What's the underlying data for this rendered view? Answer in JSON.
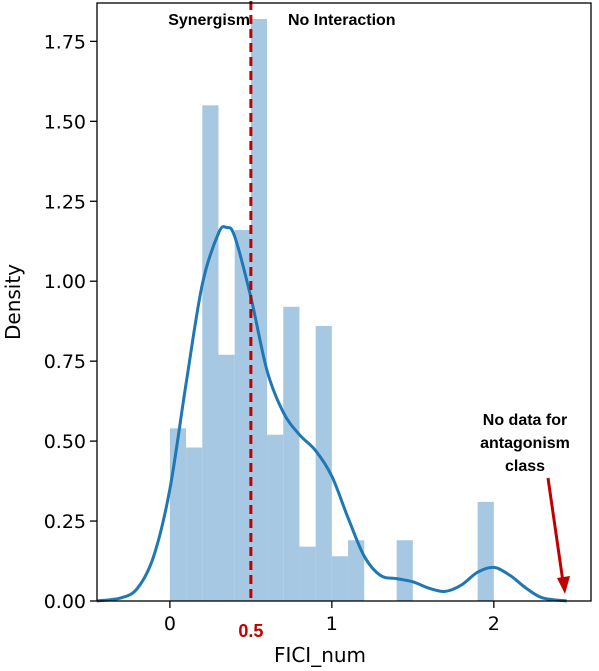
{
  "chart_data": {
    "type": "histogram",
    "xlabel": "FICI_num",
    "ylabel": "Density",
    "xlim": [
      -0.45,
      2.6
    ],
    "ylim": [
      0,
      1.87
    ],
    "x_ticks": [
      {
        "value": 0,
        "label": "0"
      },
      {
        "value": 1,
        "label": "1"
      },
      {
        "value": 2,
        "label": "2"
      }
    ],
    "y_ticks": [
      {
        "value": 0.0,
        "label": "0.00"
      },
      {
        "value": 0.25,
        "label": "0.25"
      },
      {
        "value": 0.5,
        "label": "0.50"
      },
      {
        "value": 0.75,
        "label": "0.75"
      },
      {
        "value": 1.0,
        "label": "1.00"
      },
      {
        "value": 1.25,
        "label": "1.25"
      },
      {
        "value": 1.5,
        "label": "1.50"
      },
      {
        "value": 1.75,
        "label": "1.75"
      }
    ],
    "grid": false,
    "histogram": {
      "color": "#a6c8e2",
      "bin_width": 0.1,
      "bins": [
        {
          "x0": 0.0,
          "x1": 0.1,
          "density": 0.54
        },
        {
          "x0": 0.1,
          "x1": 0.2,
          "density": 0.48
        },
        {
          "x0": 0.2,
          "x1": 0.3,
          "density": 1.55
        },
        {
          "x0": 0.3,
          "x1": 0.4,
          "density": 0.77
        },
        {
          "x0": 0.4,
          "x1": 0.5,
          "density": 1.16
        },
        {
          "x0": 0.5,
          "x1": 0.6,
          "density": 1.82
        },
        {
          "x0": 0.6,
          "x1": 0.7,
          "density": 0.52
        },
        {
          "x0": 0.7,
          "x1": 0.8,
          "density": 0.92
        },
        {
          "x0": 0.8,
          "x1": 0.9,
          "density": 0.17
        },
        {
          "x0": 0.9,
          "x1": 1.0,
          "density": 0.86
        },
        {
          "x0": 1.0,
          "x1": 1.1,
          "density": 0.14
        },
        {
          "x0": 1.1,
          "x1": 1.2,
          "density": 0.19
        },
        {
          "x0": 1.2,
          "x1": 1.3,
          "density": 0.0
        },
        {
          "x0": 1.3,
          "x1": 1.4,
          "density": 0.0
        },
        {
          "x0": 1.4,
          "x1": 1.5,
          "density": 0.19
        },
        {
          "x0": 1.5,
          "x1": 1.6,
          "density": 0.0
        },
        {
          "x0": 1.6,
          "x1": 1.7,
          "density": 0.0
        },
        {
          "x0": 1.7,
          "x1": 1.8,
          "density": 0.0
        },
        {
          "x0": 1.8,
          "x1": 1.9,
          "density": 0.0
        },
        {
          "x0": 1.9,
          "x1": 2.0,
          "density": 0.31
        }
      ]
    },
    "kde": {
      "color": "#1f77b4",
      "points": [
        [
          -0.45,
          0.0
        ],
        [
          -0.3,
          0.01
        ],
        [
          -0.2,
          0.04
        ],
        [
          -0.1,
          0.14
        ],
        [
          0.0,
          0.35
        ],
        [
          0.1,
          0.68
        ],
        [
          0.2,
          0.99
        ],
        [
          0.3,
          1.15
        ],
        [
          0.35,
          1.168
        ],
        [
          0.4,
          1.14
        ],
        [
          0.5,
          0.95
        ],
        [
          0.6,
          0.72
        ],
        [
          0.7,
          0.59
        ],
        [
          0.8,
          0.52
        ],
        [
          0.9,
          0.47
        ],
        [
          1.0,
          0.39
        ],
        [
          1.1,
          0.26
        ],
        [
          1.2,
          0.14
        ],
        [
          1.3,
          0.08
        ],
        [
          1.4,
          0.07
        ],
        [
          1.5,
          0.06
        ],
        [
          1.6,
          0.04
        ],
        [
          1.7,
          0.03
        ],
        [
          1.8,
          0.05
        ],
        [
          1.9,
          0.09
        ],
        [
          2.0,
          0.105
        ],
        [
          2.1,
          0.08
        ],
        [
          2.2,
          0.04
        ],
        [
          2.3,
          0.01
        ],
        [
          2.45,
          0.0
        ]
      ]
    },
    "threshold": {
      "x": 0.5,
      "label": "0.5",
      "color": "#c00000"
    },
    "annotations": {
      "left_region": "Synergism",
      "right_region": "No Interaction",
      "no_data": [
        "No data for",
        "antagonism",
        "class"
      ],
      "arrow_color": "#c00000"
    }
  }
}
